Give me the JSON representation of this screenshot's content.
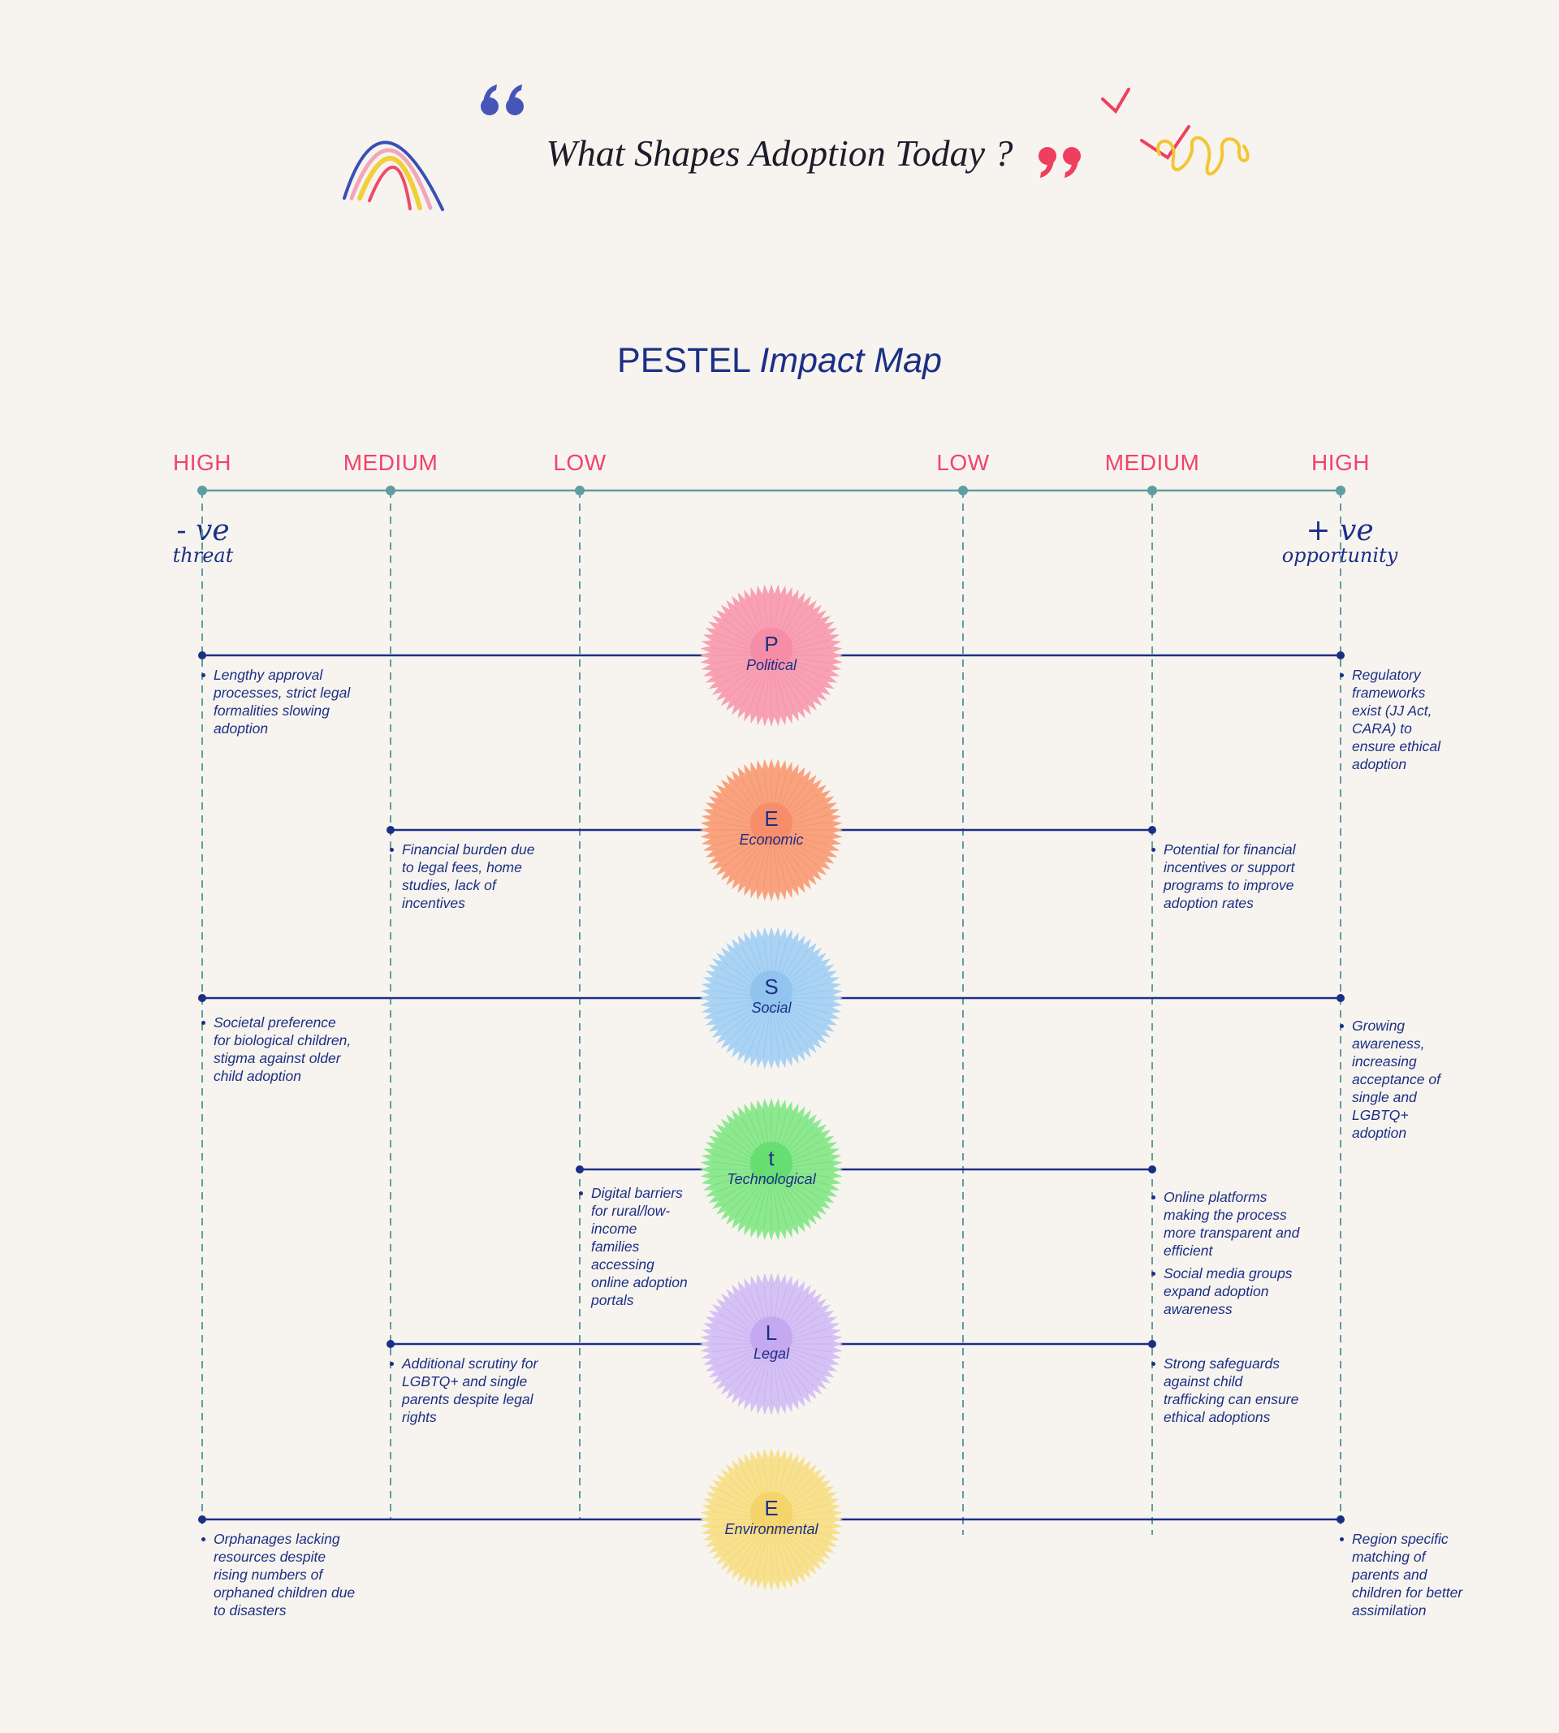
{
  "header": {
    "title": "What Shapes Adoption Today ?"
  },
  "map_title": {
    "main": "PESTEL",
    "ital": "Impact Map"
  },
  "scale": {
    "negative_labels": [
      "HIGH",
      "MEDIUM",
      "LOW"
    ],
    "positive_labels": [
      "LOW",
      "MEDIUM",
      "HIGH"
    ],
    "negative_annotation": {
      "sign": "- ve",
      "word": "threat"
    },
    "positive_annotation": {
      "sign": "+ ve",
      "word": "opportunity"
    }
  },
  "colors": {
    "accent_red": "#f0436b",
    "navy": "#1c2f86",
    "teal": "#5f9da0",
    "background": "#f7f4ef"
  },
  "factors": [
    {
      "letter": "P",
      "name": "Political",
      "color": "#f7a1b3",
      "core": "#f48aa3",
      "threat_level": "HIGH",
      "opportunity_level": "HIGH",
      "threats": [
        "Lengthy approval processes, strict legal formalities slowing adoption"
      ],
      "opportunities": [
        "Regulatory frameworks exist (JJ Act, CARA) to ensure ethical adoption"
      ]
    },
    {
      "letter": "E",
      "name": "Economic",
      "color": "#f8a27e",
      "core": "#f68a66",
      "threat_level": "MEDIUM",
      "opportunity_level": "MEDIUM",
      "threats": [
        "Financial burden due to legal fees, home studies, lack of incentives"
      ],
      "opportunities": [
        "Potential for financial incentives or support programs to improve adoption rates"
      ]
    },
    {
      "letter": "S",
      "name": "Social",
      "color": "#a9d2f3",
      "core": "#8cc0ee",
      "threat_level": "HIGH",
      "opportunity_level": "HIGH",
      "threats": [
        "Societal preference for biological children, stigma against older child adoption"
      ],
      "opportunities": [
        "Growing awareness, increasing acceptance of single and LGBTQ+ adoption"
      ]
    },
    {
      "letter": "t",
      "name": "Technological",
      "color": "#8ee890",
      "core": "#5fdc6a",
      "threat_level": "LOW",
      "opportunity_level": "MEDIUM",
      "threats": [
        "Digital barriers for rural/low-income families accessing online adoption portals"
      ],
      "opportunities": [
        "Online platforms making the process more transparent and efficient",
        "Social media groups expand adoption awareness"
      ]
    },
    {
      "letter": "L",
      "name": "Legal",
      "color": "#d6c1f4",
      "core": "#c2a4ef",
      "threat_level": "MEDIUM",
      "opportunity_level": "MEDIUM",
      "threats": [
        "Additional scrutiny for LGBTQ+ and single parents despite legal rights"
      ],
      "opportunities": [
        "Strong safeguards against child trafficking can ensure ethical adoptions"
      ]
    },
    {
      "letter": "E",
      "name": "Environmental",
      "color": "#f7e08e",
      "core": "#f4d264",
      "threat_level": "HIGH",
      "opportunity_level": "HIGH",
      "threats": [
        "Orphanages lacking resources despite rising numbers of orphaned children due to disasters"
      ],
      "opportunities": [
        "Region specific matching of parents and children for better assimilation"
      ]
    }
  ]
}
